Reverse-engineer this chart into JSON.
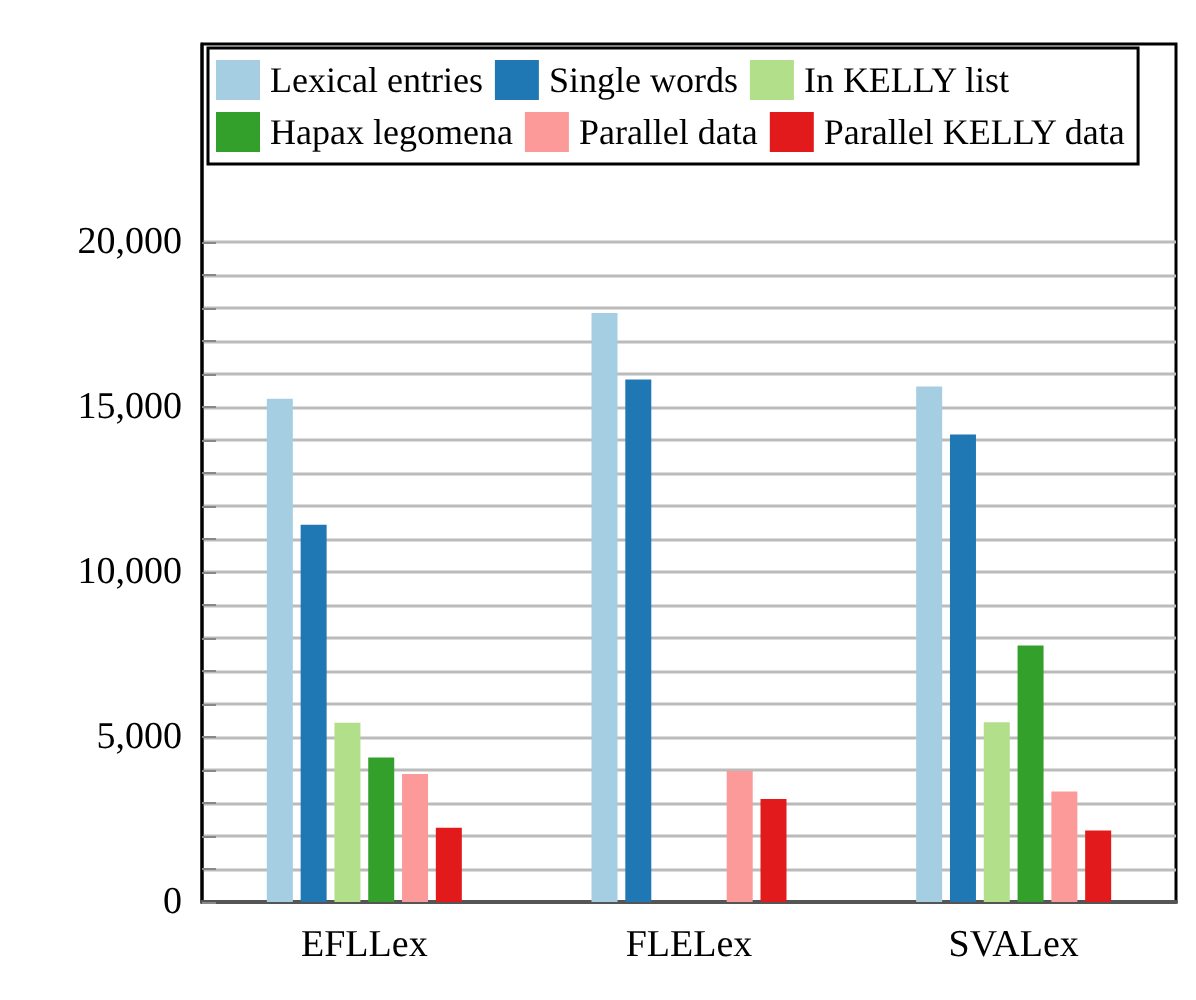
{
  "chart_data": {
    "type": "bar",
    "categories": [
      "EFLLex",
      "FLELex",
      "SVALex"
    ],
    "series": [
      {
        "name": "Lexical entries",
        "color": "#a6cee3",
        "values": [
          15250,
          17850,
          15620
        ]
      },
      {
        "name": "Single words",
        "color": "#1f78b4",
        "values": [
          11430,
          15830,
          14170
        ]
      },
      {
        "name": "In KELLY list",
        "color": "#b2df8a",
        "values": [
          5430,
          0,
          5450
        ]
      },
      {
        "name": "Hapax legomena",
        "color": "#33a02c",
        "values": [
          4380,
          0,
          7770
        ]
      },
      {
        "name": "Parallel data",
        "color": "#fb9a99",
        "values": [
          3880,
          3970,
          3350
        ]
      },
      {
        "name": "Parallel KELLY data",
        "color": "#e31a1c",
        "values": [
          2250,
          3120,
          2170
        ]
      }
    ],
    "ylim": [
      0,
      26000
    ],
    "yticks": [
      0,
      {
        "value": 1000,
        "label": null
      },
      {
        "value": 2000,
        "label": null
      },
      {
        "value": 3000,
        "label": null
      },
      {
        "value": 4000,
        "label": null
      },
      {
        "value": 5000,
        "label": "5,000"
      },
      {
        "value": 6000,
        "label": null
      },
      {
        "value": 7000,
        "label": null
      },
      {
        "value": 8000,
        "label": null
      },
      {
        "value": 9000,
        "label": null
      },
      {
        "value": 10000,
        "label": "10,000"
      },
      {
        "value": 11000,
        "label": null
      },
      {
        "value": 12000,
        "label": null
      },
      {
        "value": 13000,
        "label": null
      },
      {
        "value": 14000,
        "label": null
      },
      {
        "value": 15000,
        "label": "15,000"
      },
      {
        "value": 16000,
        "label": null
      },
      {
        "value": 17000,
        "label": null
      },
      {
        "value": 18000,
        "label": null
      },
      {
        "value": 19000,
        "label": null
      },
      {
        "value": 20000,
        "label": "20,000"
      }
    ],
    "grid": "y",
    "legend": "top"
  }
}
